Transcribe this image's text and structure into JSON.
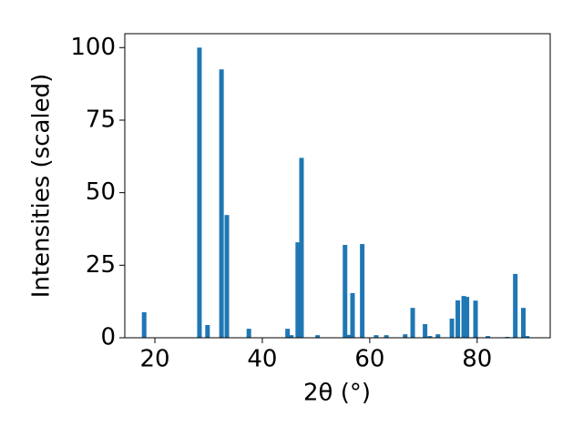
{
  "chart_data": {
    "type": "bar",
    "x_label": "2θ (°)",
    "y_label": "Intensities (scaled)",
    "x": [
      18.0,
      28.3,
      29.8,
      32.4,
      33.4,
      37.5,
      44.7,
      45.4,
      46.6,
      47.3,
      50.3,
      55.4,
      56.1,
      56.8,
      58.6,
      61.2,
      63.1,
      66.6,
      68.0,
      70.3,
      71.2,
      72.7,
      75.3,
      76.4,
      77.5,
      78.1,
      79.7,
      82.0,
      85.6,
      87.1,
      88.6,
      89.3
    ],
    "values": [
      8.8,
      100,
      4.4,
      92.5,
      42.3,
      3.1,
      3.1,
      0.9,
      32.9,
      62,
      0.9,
      32,
      1,
      15.4,
      32.3,
      0.9,
      0.9,
      1.2,
      10.3,
      4.7,
      0.6,
      1.2,
      6.6,
      12.9,
      14.4,
      14.1,
      12.8,
      0.6,
      0.3,
      22,
      10.3,
      0.6
    ],
    "color": "#1f77b4",
    "xlim": [
      14.4,
      93.6
    ],
    "xticks": [
      20,
      40,
      60,
      80
    ],
    "ylim": [
      0,
      104.8
    ],
    "yticks": [
      0,
      25,
      50,
      75,
      100
    ]
  }
}
